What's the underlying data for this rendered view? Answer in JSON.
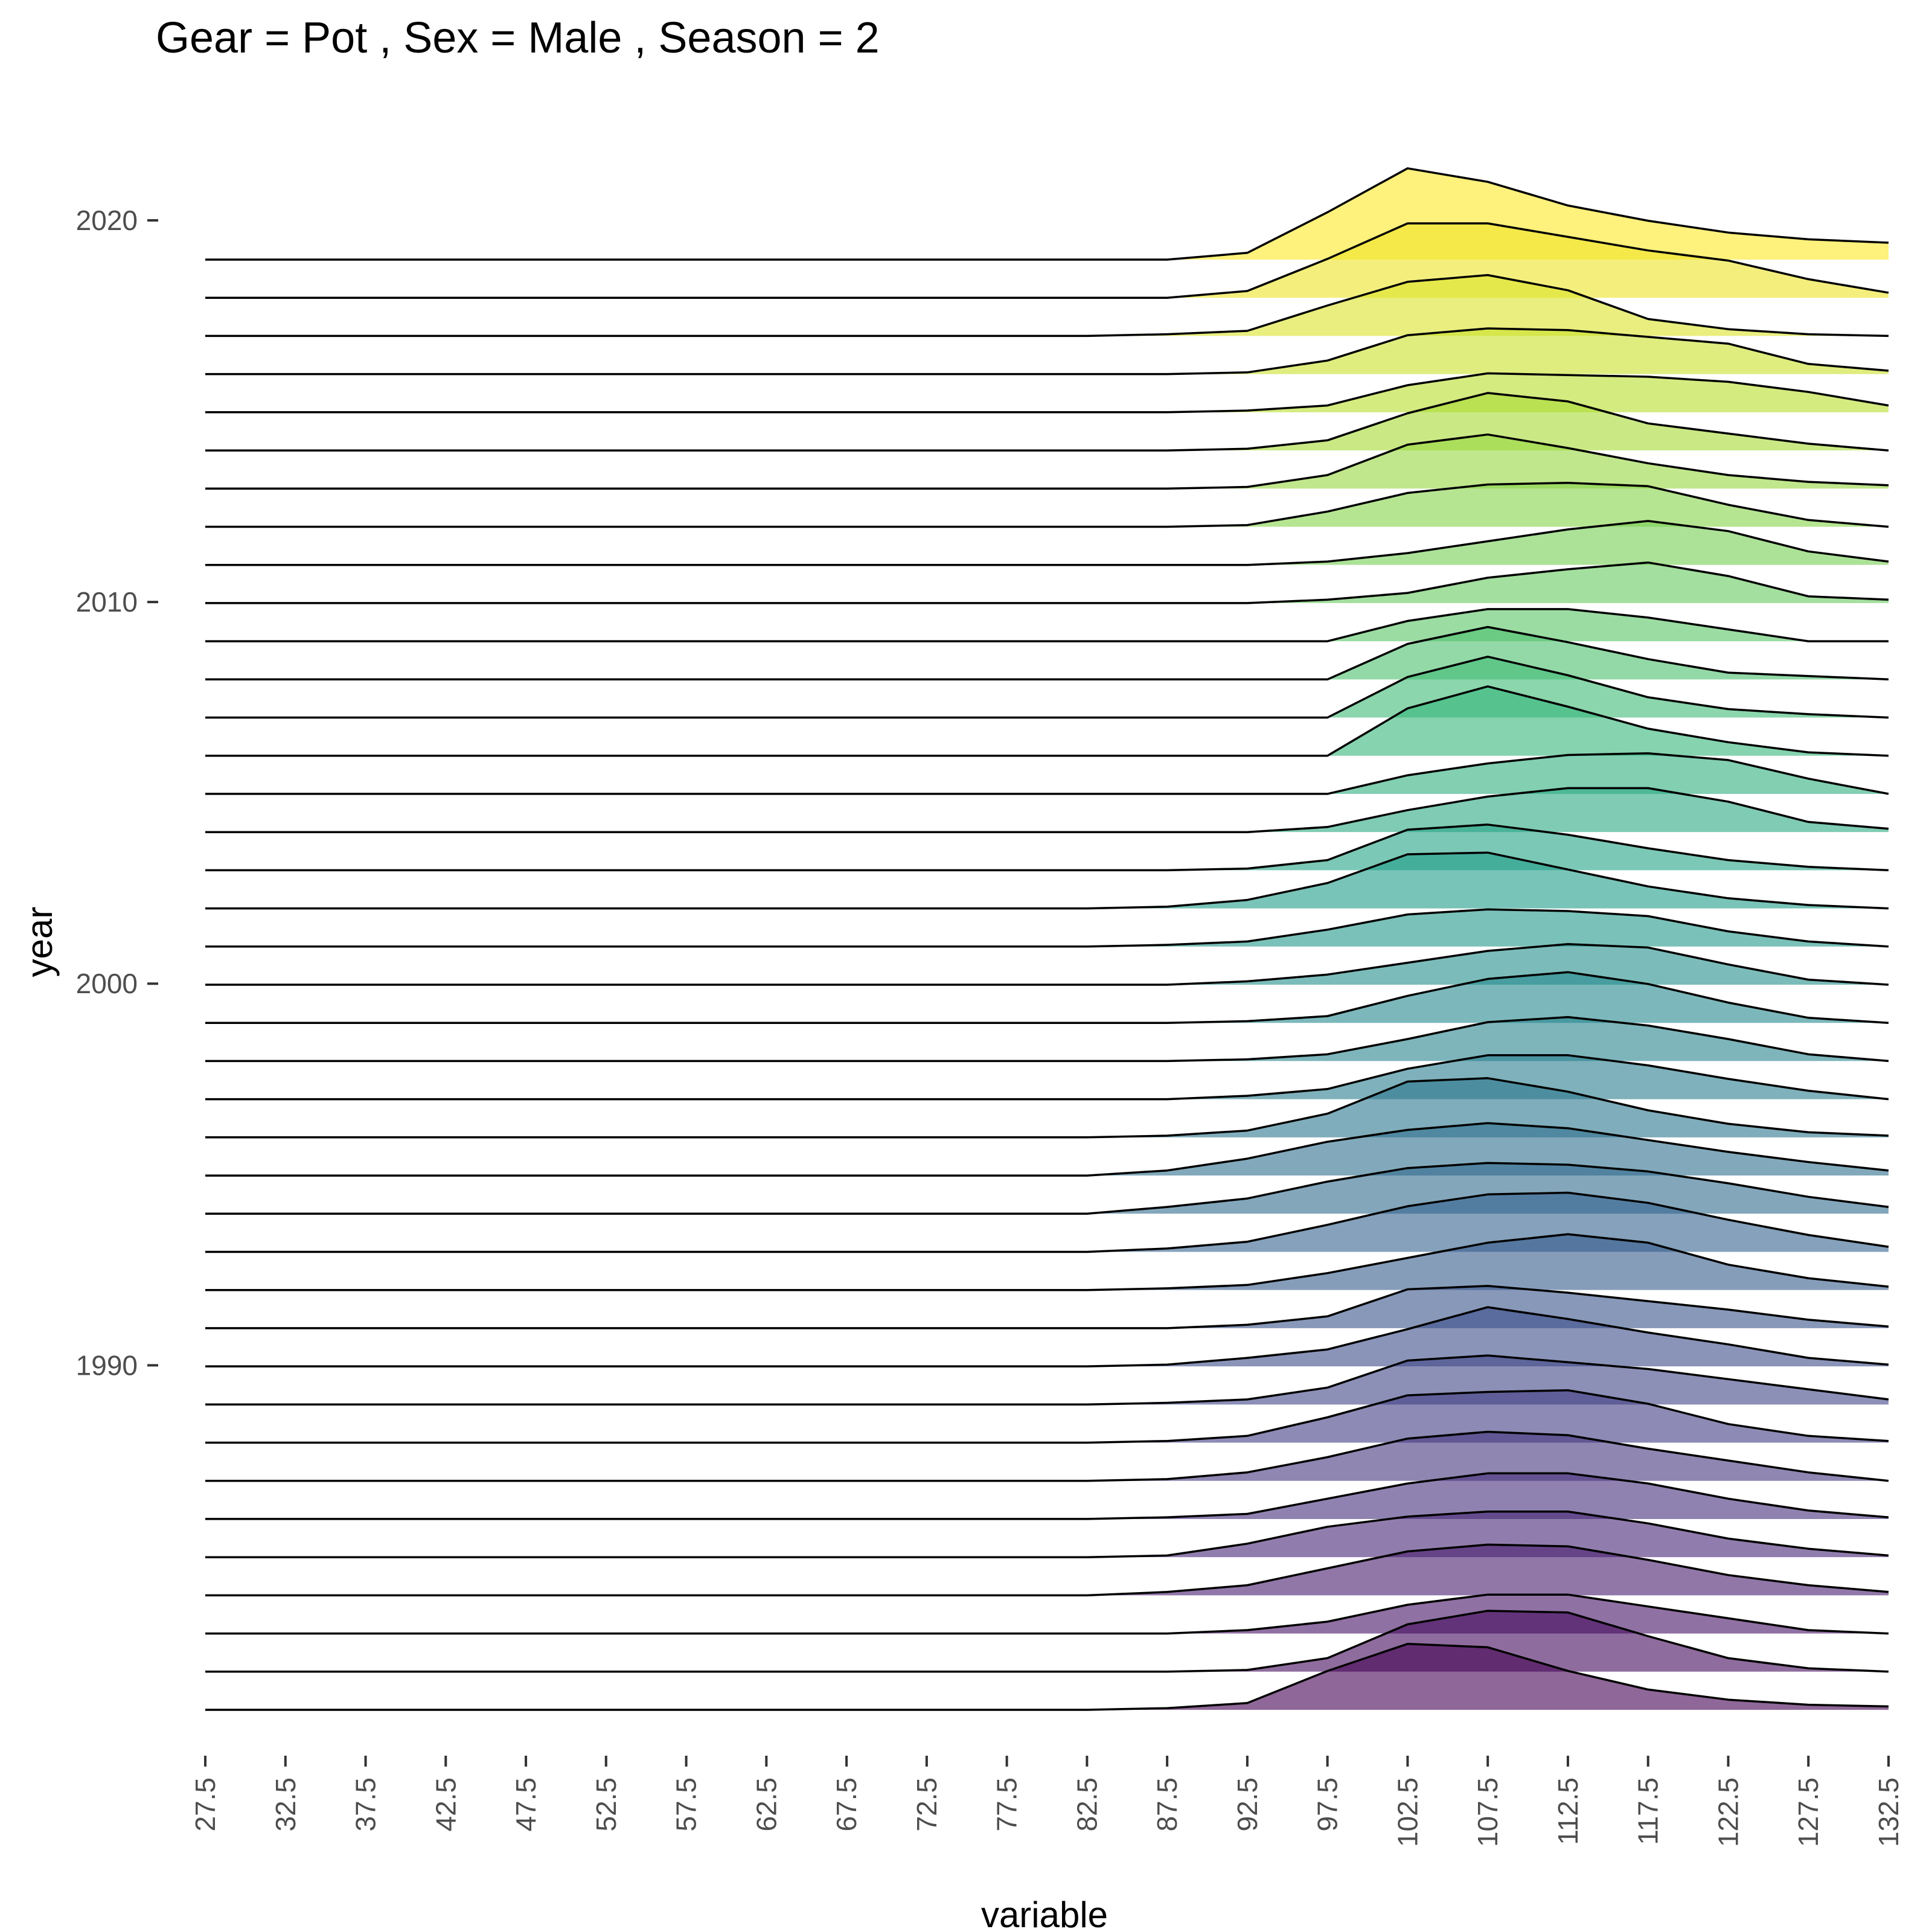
{
  "chart_data": {
    "type": "ridgeline",
    "title": "Gear = Pot , Sex = Male , Season = 2",
    "xlabel": "variable",
    "ylabel": "year",
    "x_ticks": [
      "27.5",
      "32.5",
      "37.5",
      "42.5",
      "47.5",
      "52.5",
      "57.5",
      "62.5",
      "67.5",
      "72.5",
      "77.5",
      "82.5",
      "87.5",
      "92.5",
      "97.5",
      "102.5",
      "107.5",
      "112.5",
      "117.5",
      "122.5",
      "127.5",
      "132.5"
    ],
    "x": [
      27.5,
      32.5,
      37.5,
      42.5,
      47.5,
      52.5,
      57.5,
      62.5,
      67.5,
      72.5,
      77.5,
      82.5,
      87.5,
      92.5,
      97.5,
      102.5,
      107.5,
      112.5,
      117.5,
      122.5,
      127.5,
      132.5
    ],
    "y_ticks": [
      "1990",
      "2000",
      "2010",
      "2020"
    ],
    "y_tick_values": [
      1990,
      2000,
      2010,
      2020
    ],
    "xlim": [
      27.5,
      132.5
    ],
    "ylim": [
      1982,
      2020
    ],
    "grid": false,
    "legend": "none",
    "fill_colormap": "viridis",
    "fill_alpha": 0.6,
    "series": [
      {
        "year": 1982,
        "values": [
          0,
          0,
          0,
          0,
          0,
          0,
          0,
          0,
          0,
          0,
          0,
          0,
          0.1,
          0.4,
          2.3,
          3.9,
          3.7,
          2.3,
          1.2,
          0.6,
          0.3,
          0.2
        ]
      },
      {
        "year": 1983,
        "values": [
          0,
          0,
          0,
          0,
          0,
          0,
          0,
          0,
          0,
          0,
          0,
          0,
          0,
          0.1,
          0.8,
          2.8,
          3.6,
          3.5,
          2.1,
          0.8,
          0.2,
          0
        ]
      },
      {
        "year": 1984,
        "values": [
          0,
          0,
          0,
          0,
          0,
          0,
          0,
          0,
          0,
          0,
          0,
          0,
          0,
          0.2,
          0.7,
          1.7,
          2.3,
          2.3,
          1.6,
          0.9,
          0.2,
          0
        ]
      },
      {
        "year": 1985,
        "values": [
          0,
          0,
          0,
          0,
          0,
          0,
          0,
          0,
          0,
          0,
          0,
          0,
          0.2,
          0.6,
          1.6,
          2.6,
          3.0,
          2.9,
          2.1,
          1.2,
          0.6,
          0.2
        ]
      },
      {
        "year": 1986,
        "values": [
          0,
          0,
          0,
          0,
          0,
          0,
          0,
          0,
          0,
          0,
          0,
          0,
          0.1,
          0.8,
          1.8,
          2.4,
          2.7,
          2.7,
          2.0,
          1.1,
          0.5,
          0.1
        ]
      },
      {
        "year": 1987,
        "values": [
          0,
          0,
          0,
          0,
          0,
          0,
          0,
          0,
          0,
          0,
          0,
          0,
          0.1,
          0.3,
          1.2,
          2.1,
          2.7,
          2.7,
          2.1,
          1.2,
          0.5,
          0.1
        ]
      },
      {
        "year": 1988,
        "values": [
          0,
          0,
          0,
          0,
          0,
          0,
          0,
          0,
          0,
          0,
          0,
          0,
          0.1,
          0.5,
          1.4,
          2.5,
          2.9,
          2.7,
          1.9,
          1.2,
          0.5,
          0
        ]
      },
      {
        "year": 1989,
        "values": [
          0,
          0,
          0,
          0,
          0,
          0,
          0,
          0,
          0,
          0,
          0,
          0,
          0.1,
          0.4,
          1.5,
          2.8,
          3.0,
          3.1,
          2.3,
          1.1,
          0.4,
          0.1
        ]
      },
      {
        "year": 1990,
        "values": [
          0,
          0,
          0,
          0,
          0,
          0,
          0,
          0,
          0,
          0,
          0,
          0,
          0.1,
          0.3,
          1.0,
          2.6,
          2.9,
          2.5,
          2.1,
          1.5,
          0.9,
          0.3
        ]
      },
      {
        "year": 1991,
        "values": [
          0,
          0,
          0,
          0,
          0,
          0,
          0,
          0,
          0,
          0,
          0,
          0,
          0.1,
          0.5,
          1.0,
          2.2,
          3.5,
          2.8,
          2.0,
          1.3,
          0.5,
          0.1
        ]
      },
      {
        "year": 1992,
        "values": [
          0,
          0,
          0,
          0,
          0,
          0,
          0,
          0,
          0,
          0,
          0,
          0,
          0,
          0.2,
          0.7,
          2.3,
          2.5,
          2.1,
          1.6,
          1.1,
          0.5,
          0.1
        ]
      },
      {
        "year": 1993,
        "values": [
          0,
          0,
          0,
          0,
          0,
          0,
          0,
          0,
          0,
          0,
          0,
          0,
          0.1,
          0.3,
          1.0,
          1.9,
          2.8,
          3.3,
          2.8,
          1.5,
          0.7,
          0.2
        ]
      },
      {
        "year": 1994,
        "values": [
          0,
          0,
          0,
          0,
          0,
          0,
          0,
          0,
          0,
          0,
          0,
          0,
          0.2,
          0.6,
          1.6,
          2.7,
          3.4,
          3.5,
          2.9,
          1.9,
          1.0,
          0.3
        ]
      },
      {
        "year": 1995,
        "values": [
          0,
          0,
          0,
          0,
          0,
          0,
          0,
          0,
          0,
          0,
          0,
          0,
          0.4,
          0.9,
          1.9,
          2.7,
          3.0,
          2.9,
          2.5,
          1.8,
          1.0,
          0.4
        ]
      },
      {
        "year": 1996,
        "values": [
          0,
          0,
          0,
          0,
          0,
          0,
          0,
          0,
          0,
          0,
          0,
          0,
          0.3,
          1.0,
          2.0,
          2.7,
          3.1,
          2.8,
          2.1,
          1.4,
          0.8,
          0.3
        ]
      },
      {
        "year": 1997,
        "values": [
          0,
          0,
          0,
          0,
          0,
          0,
          0,
          0,
          0,
          0,
          0,
          0,
          0.1,
          0.4,
          1.4,
          3.3,
          3.5,
          2.7,
          1.6,
          0.8,
          0.3,
          0.1
        ]
      },
      {
        "year": 1998,
        "values": [
          0,
          0,
          0,
          0,
          0,
          0,
          0,
          0,
          0,
          0,
          0,
          0,
          0,
          0.2,
          0.6,
          1.8,
          2.6,
          2.6,
          2.0,
          1.2,
          0.5,
          0
        ]
      },
      {
        "year": 1999,
        "values": [
          0,
          0,
          0,
          0,
          0,
          0,
          0,
          0,
          0,
          0,
          0,
          0,
          0,
          0.1,
          0.4,
          1.3,
          2.3,
          2.6,
          2.1,
          1.3,
          0.4,
          0
        ]
      },
      {
        "year": 2000,
        "values": [
          0,
          0,
          0,
          0,
          0,
          0,
          0,
          0,
          0,
          0,
          0,
          0,
          0,
          0.1,
          0.4,
          1.6,
          2.6,
          3.0,
          2.3,
          1.2,
          0.3,
          0
        ]
      },
      {
        "year": 2001,
        "values": [
          0,
          0,
          0,
          0,
          0,
          0,
          0,
          0,
          0,
          0,
          0,
          0,
          0,
          0.2,
          0.6,
          1.3,
          2.0,
          2.4,
          2.2,
          1.2,
          0.3,
          0
        ]
      },
      {
        "year": 2002,
        "values": [
          0,
          0,
          0,
          0,
          0,
          0,
          0,
          0,
          0,
          0,
          0,
          0,
          0.1,
          0.3,
          1.0,
          1.9,
          2.2,
          2.1,
          1.8,
          0.9,
          0.3,
          0
        ]
      },
      {
        "year": 2003,
        "values": [
          0,
          0,
          0,
          0,
          0,
          0,
          0,
          0,
          0,
          0,
          0,
          0,
          0.1,
          0.5,
          1.5,
          3.2,
          3.3,
          2.3,
          1.3,
          0.6,
          0.2,
          0
        ]
      },
      {
        "year": 2004,
        "values": [
          0,
          0,
          0,
          0,
          0,
          0,
          0,
          0,
          0,
          0,
          0,
          0,
          0,
          0.1,
          0.6,
          2.4,
          2.7,
          2.1,
          1.3,
          0.6,
          0.2,
          0
        ]
      },
      {
        "year": 2005,
        "values": [
          0,
          0,
          0,
          0,
          0,
          0,
          0,
          0,
          0,
          0,
          0,
          0,
          0,
          0,
          0.3,
          1.3,
          2.1,
          2.6,
          2.6,
          1.8,
          0.6,
          0.2
        ]
      },
      {
        "year": 2006,
        "values": [
          0,
          0,
          0,
          0,
          0,
          0,
          0,
          0,
          0,
          0,
          0,
          0,
          0,
          0,
          0,
          1.1,
          1.8,
          2.3,
          2.4,
          2.0,
          0.9,
          0
        ]
      },
      {
        "year": 2007,
        "values": [
          0,
          0,
          0,
          0,
          0,
          0,
          0,
          0,
          0,
          0,
          0,
          0,
          0,
          0,
          0,
          2.8,
          4.1,
          2.9,
          1.6,
          0.8,
          0.2,
          0
        ]
      },
      {
        "year": 2008,
        "values": [
          0,
          0,
          0,
          0,
          0,
          0,
          0,
          0,
          0,
          0,
          0,
          0,
          0,
          0,
          0,
          2.4,
          3.6,
          2.5,
          1.2,
          0.5,
          0.2,
          0
        ]
      },
      {
        "year": 2009,
        "values": [
          0,
          0,
          0,
          0,
          0,
          0,
          0,
          0,
          0,
          0,
          0,
          0,
          0,
          0,
          0,
          2.1,
          3.1,
          2.2,
          1.2,
          0.4,
          0.2,
          0
        ]
      },
      {
        "year": 2010,
        "values": [
          0,
          0,
          0,
          0,
          0,
          0,
          0,
          0,
          0,
          0,
          0,
          0,
          0,
          0,
          0,
          1.2,
          1.9,
          1.9,
          1.4,
          0.7,
          0,
          0
        ]
      },
      {
        "year": 2011,
        "values": [
          0,
          0,
          0,
          0,
          0,
          0,
          0,
          0,
          0,
          0,
          0,
          0,
          0,
          0,
          0.2,
          0.6,
          1.5,
          2.0,
          2.4,
          1.6,
          0.4,
          0.2
        ]
      },
      {
        "year": 2012,
        "values": [
          0,
          0,
          0,
          0,
          0,
          0,
          0,
          0,
          0,
          0,
          0,
          0,
          0,
          0,
          0.2,
          0.7,
          1.4,
          2.1,
          2.6,
          2.0,
          0.8,
          0.2
        ]
      },
      {
        "year": 2013,
        "values": [
          0,
          0,
          0,
          0,
          0,
          0,
          0,
          0,
          0,
          0,
          0,
          0,
          0,
          0.1,
          0.9,
          2.0,
          2.5,
          2.6,
          2.4,
          1.3,
          0.4,
          0
        ]
      },
      {
        "year": 2014,
        "values": [
          0,
          0,
          0,
          0,
          0,
          0,
          0,
          0,
          0,
          0,
          0,
          0,
          0,
          0.1,
          0.8,
          2.6,
          3.2,
          2.4,
          1.5,
          0.8,
          0.4,
          0.2
        ]
      },
      {
        "year": 2015,
        "values": [
          0,
          0,
          0,
          0,
          0,
          0,
          0,
          0,
          0,
          0,
          0,
          0,
          0,
          0.1,
          0.6,
          2.2,
          3.4,
          2.9,
          1.6,
          1.0,
          0.4,
          0
        ]
      },
      {
        "year": 2016,
        "values": [
          0,
          0,
          0,
          0,
          0,
          0,
          0,
          0,
          0,
          0,
          0,
          0,
          0,
          0.1,
          0.4,
          1.6,
          2.3,
          2.2,
          2.1,
          1.8,
          1.2,
          0.4
        ]
      },
      {
        "year": 2017,
        "values": [
          0,
          0,
          0,
          0,
          0,
          0,
          0,
          0,
          0,
          0,
          0,
          0,
          0,
          0.1,
          0.8,
          2.3,
          2.7,
          2.6,
          2.2,
          1.8,
          0.6,
          0.2
        ]
      },
      {
        "year": 2018,
        "values": [
          0,
          0,
          0,
          0,
          0,
          0,
          0,
          0,
          0,
          0,
          0,
          0,
          0.1,
          0.3,
          1.8,
          3.2,
          3.6,
          2.7,
          1.0,
          0.4,
          0.1,
          0
        ]
      },
      {
        "year": 2019,
        "values": [
          0,
          0,
          0,
          0,
          0,
          0,
          0,
          0,
          0,
          0,
          0,
          0,
          0,
          0.4,
          2.3,
          4.4,
          4.4,
          3.6,
          2.8,
          2.2,
          1.1,
          0.3
        ]
      },
      {
        "year": 2020,
        "values": [
          0,
          0,
          0,
          0,
          0,
          0,
          0,
          0,
          0,
          0,
          0,
          0,
          0,
          0.4,
          2.8,
          5.4,
          4.6,
          3.2,
          2.3,
          1.6,
          1.2,
          1.0
        ]
      }
    ]
  }
}
